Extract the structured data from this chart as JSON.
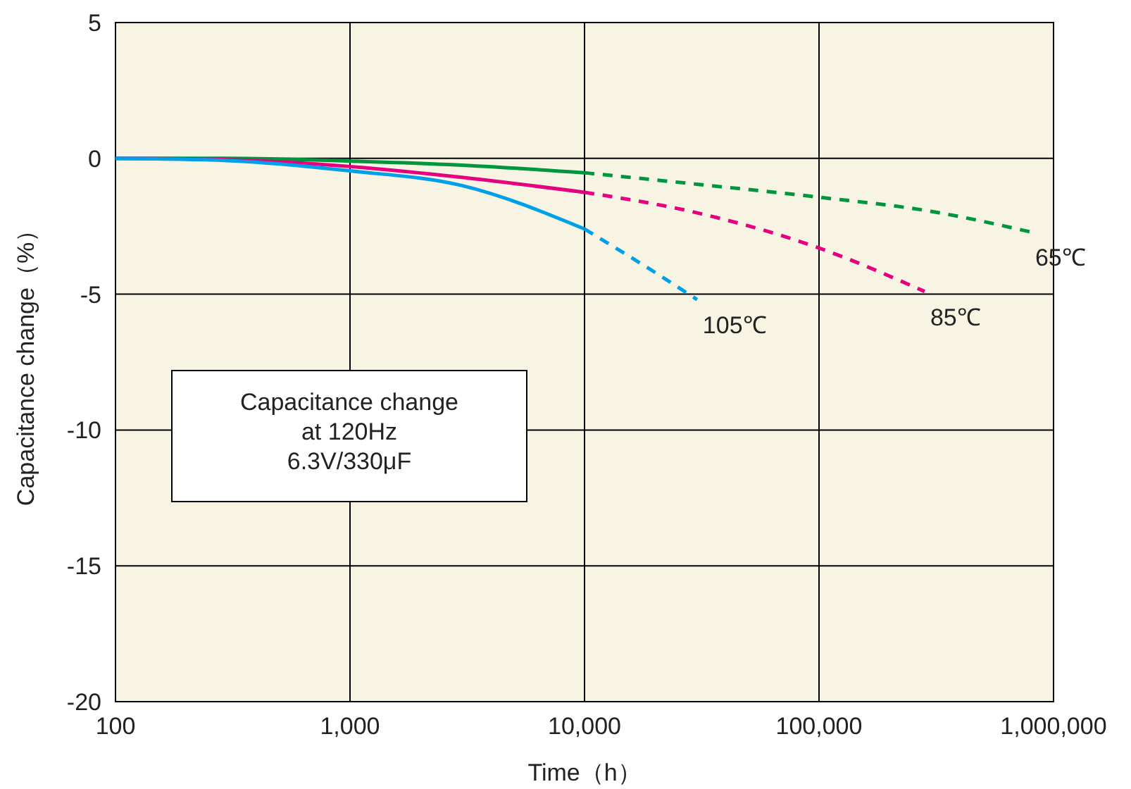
{
  "chart_data": {
    "type": "line",
    "xlabel": "Time（h）",
    "ylabel": "Capacitance change（%）",
    "log": "x",
    "grid": true,
    "legend": false,
    "xlim": [
      100,
      1000000
    ],
    "xticks": [
      100,
      {
        "value": 1000,
        "label": "1,000"
      },
      {
        "value": 10000,
        "label": "10,000"
      },
      {
        "value": 100000,
        "label": "100,000"
      },
      {
        "value": 1000000,
        "label": "1,000,000"
      }
    ],
    "ylim": [
      -20,
      5
    ],
    "yticks": [
      -20,
      -15,
      -10,
      -5,
      0,
      5
    ],
    "series": [
      {
        "color": "#00963f",
        "line_style": "solid",
        "x": [
          100,
          300,
          1000,
          3000,
          10000
        ],
        "values": [
          0,
          0,
          -0.1,
          -0.25,
          -0.53
        ]
      },
      {
        "color": "#e5007f",
        "line_style": "solid",
        "x": [
          100,
          300,
          1000,
          3000,
          10000
        ],
        "values": [
          0,
          -0.05,
          -0.3,
          -0.7,
          -1.25
        ]
      },
      {
        "color": "#00a0e9",
        "line_style": "solid",
        "x": [
          100,
          300,
          1000,
          3000,
          10000
        ],
        "values": [
          0,
          -0.08,
          -0.46,
          -1.0,
          -2.6
        ]
      },
      {
        "name": "65℃",
        "color": "#00963f",
        "line_style": "dashed",
        "x": [
          10000,
          30000,
          100000,
          300000,
          790000
        ],
        "values": [
          -0.53,
          -0.95,
          -1.43,
          -1.95,
          -2.7
        ]
      },
      {
        "name": "85℃",
        "color": "#e5007f",
        "line_style": "dashed",
        "x": [
          10000,
          30000,
          100000,
          282000
        ],
        "values": [
          -1.25,
          -2.0,
          -3.3,
          -4.9
        ]
      },
      {
        "name": "105℃",
        "color": "#00a0e9",
        "line_style": "dashed",
        "x": [
          10000,
          20000,
          30200
        ],
        "values": [
          -2.6,
          -4.2,
          -5.2
        ]
      }
    ],
    "annotations": [
      "Capacitance change\nat 120Hz\n6.3V/330μF"
    ]
  }
}
